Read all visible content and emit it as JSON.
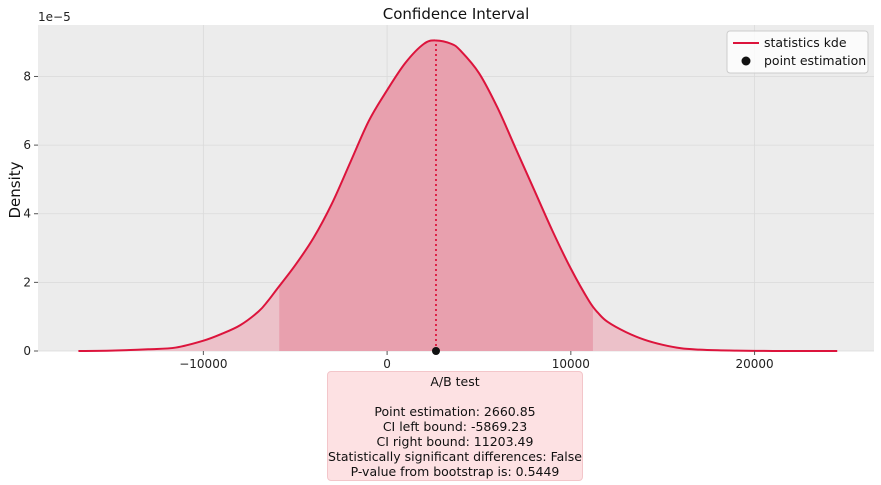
{
  "chart_data": {
    "type": "area",
    "title": "Confidence Interval",
    "xlabel": "",
    "ylabel": "Density",
    "y_offset_text": "1e−5",
    "xlim": [
      -19000,
      26500
    ],
    "ylim": [
      0,
      9.5
    ],
    "x_ticks": [
      -10000,
      0,
      10000,
      20000
    ],
    "x_tick_labels": [
      "−10000",
      "0",
      "10000",
      "20000"
    ],
    "y_ticks": [
      0,
      2,
      4,
      6,
      8
    ],
    "y_tick_labels": [
      "0",
      "2",
      "4",
      "6",
      "8"
    ],
    "grid": true,
    "legend_position": "top-right",
    "series": [
      {
        "name": "statistics kde",
        "color": "#dc143c",
        "x": [
          -16800,
          -15000,
          -13000,
          -11500,
          -10000,
          -9000,
          -8000,
          -7000,
          -6500,
          -6000,
          -5000,
          -4000,
          -3000,
          -2000,
          -1000,
          0,
          1000,
          2000,
          2660.85,
          3500,
          4000,
          5000,
          6000,
          7000,
          8000,
          9000,
          10000,
          11000,
          11500,
          12000,
          13000,
          14000,
          15000,
          16000,
          17000,
          18000,
          19000,
          20000,
          21000,
          22000,
          24500
        ],
        "y": [
          0.0,
          0.01,
          0.05,
          0.1,
          0.3,
          0.5,
          0.75,
          1.15,
          1.45,
          1.8,
          2.5,
          3.3,
          4.3,
          5.5,
          6.7,
          7.6,
          8.4,
          8.95,
          9.05,
          8.95,
          8.75,
          8.1,
          7.1,
          5.9,
          4.7,
          3.5,
          2.4,
          1.45,
          1.1,
          0.85,
          0.55,
          0.33,
          0.18,
          0.08,
          0.04,
          0.02,
          0.01,
          0.005,
          0.0,
          0.0,
          0.0
        ]
      }
    ],
    "point_estimation": {
      "name": "point estimation",
      "x": 2660.85,
      "y": 0,
      "color": "#111111"
    },
    "ci": {
      "left": -5869.23,
      "right": 11203.49,
      "fill_color": "#e8a0ae",
      "outer_fill_color": "#ecc1c9"
    }
  },
  "info_box": {
    "title": "A/B test",
    "lines": [
      "Point estimation: 2660.85",
      "CI left bound: -5869.23",
      "CI right bound: 11203.49",
      "Statistically significant differences: False",
      "P-value from bootstrap is: 0.5449"
    ]
  }
}
